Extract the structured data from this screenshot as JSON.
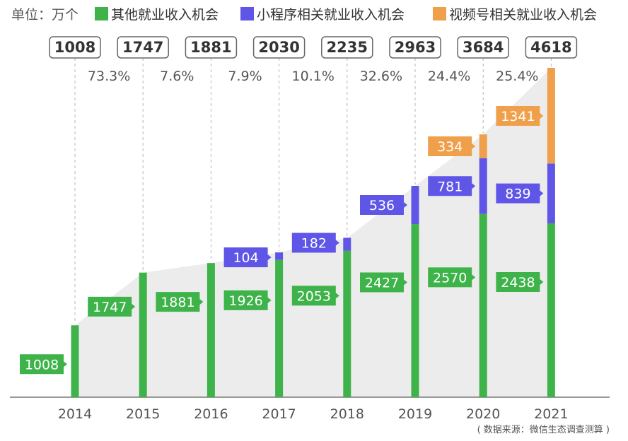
{
  "unit_label": "单位：万个",
  "source": "( 数据来源：微信生态调查测算 )",
  "colors": {
    "other": "#3db34a",
    "mini": "#5f56e8",
    "video": "#f0a04b",
    "area": "#ececec"
  },
  "chart_data": {
    "type": "bar",
    "stacked": true,
    "unit": "万个",
    "categories": [
      "2014",
      "2015",
      "2016",
      "2017",
      "2018",
      "2019",
      "2020",
      "2021"
    ],
    "series": [
      {
        "name": "其他就业收入机会",
        "key": "other",
        "values": [
          1008,
          1747,
          1881,
          1926,
          2053,
          2427,
          2570,
          2438
        ]
      },
      {
        "name": "小程序相关就业收入机会",
        "key": "mini",
        "values": [
          0,
          0,
          0,
          104,
          182,
          536,
          781,
          839
        ]
      },
      {
        "name": "视频号相关就业收入机会",
        "key": "video",
        "values": [
          0,
          0,
          0,
          0,
          0,
          0,
          334,
          1341
        ]
      }
    ],
    "totals": [
      1008,
      1747,
      1881,
      2030,
      2235,
      2963,
      3684,
      4618
    ],
    "growth_rates": [
      "73.3%",
      "7.6%",
      "7.9%",
      "10.1%",
      "32.6%",
      "24.4%",
      "25.4%"
    ],
    "ylim": [
      0,
      4618
    ],
    "legend_position": "top"
  }
}
